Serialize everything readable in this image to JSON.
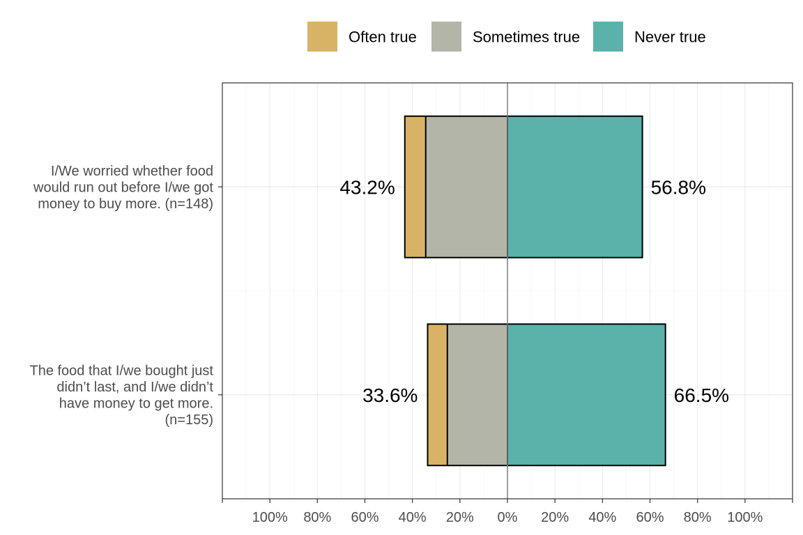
{
  "chart_data": {
    "type": "bar",
    "orientation": "horizontal",
    "stacked": true,
    "diverging": true,
    "categories": [
      [
        "I/We worried whether food",
        "would run out before I/we got",
        "money to buy more. (n=148)"
      ],
      [
        "The food that I/we bought just",
        "didn’t last, and I/we didn’t",
        "have money to get more.",
        "(n=155)"
      ]
    ],
    "series": [
      {
        "name": "Often true",
        "color": "#D9B365",
        "side": "negative",
        "values": [
          8.8,
          8.3
        ]
      },
      {
        "name": "Sometimes true",
        "color": "#B3B5A9",
        "side": "negative",
        "values": [
          34.4,
          25.3
        ]
      },
      {
        "name": "Never true",
        "color": "#5AB2AA",
        "side": "positive",
        "values": [
          56.8,
          66.5
        ]
      }
    ],
    "totals_left": [
      "43.2%",
      "33.6%"
    ],
    "totals_right": [
      "56.8%",
      "66.5%"
    ],
    "xlim": [
      -120,
      120
    ],
    "xticks": [
      -100,
      -80,
      -60,
      -40,
      -20,
      0,
      20,
      40,
      60,
      80,
      100
    ],
    "xtick_labels": [
      "100%",
      "80%",
      "60%",
      "40%",
      "20%",
      "0%",
      "20%",
      "40%",
      "60%",
      "80%",
      "100%"
    ],
    "legend_position": "top",
    "grid": true,
    "title": "",
    "xlabel": "",
    "ylabel": ""
  }
}
